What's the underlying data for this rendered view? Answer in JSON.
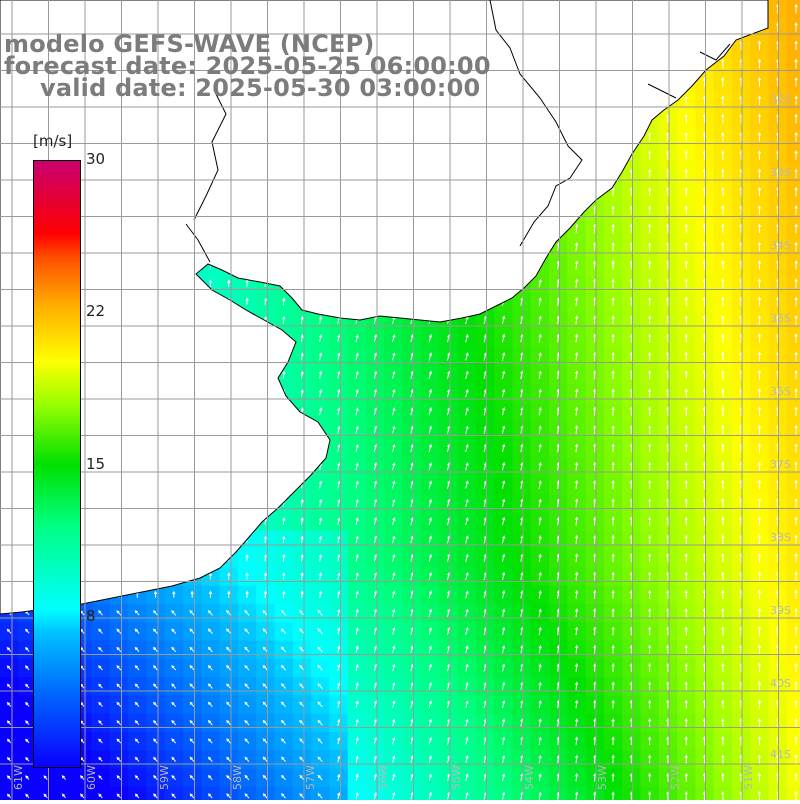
{
  "title": {
    "line1": "modelo GEFS-WAVE (NCEP)",
    "line2": "forecast date: 2025-05-25 06:00:00",
    "line3": "valid date: 2025-05-30 03:00:00"
  },
  "colorbar": {
    "unit": "[m/s]",
    "ticks": [
      "30",
      "22",
      "15",
      "8"
    ],
    "min": 0,
    "max": 30,
    "colors": [
      "#0a00ff",
      "#0066ff",
      "#00ffff",
      "#00e000",
      "#ffff00",
      "#ff5000",
      "#ff0000",
      "#c8006e"
    ]
  },
  "map": {
    "lat_labels": [
      "32S",
      "33S",
      "34S",
      "35S",
      "36S",
      "37S",
      "38S",
      "39S",
      "40S",
      "41S"
    ],
    "lon_labels": [
      "61W",
      "60W",
      "59W",
      "58W",
      "57W",
      "56W",
      "55W",
      "54W",
      "53W",
      "52W",
      "51W"
    ],
    "lat_range": [
      -41.5,
      -30.5
    ],
    "lon_range": [
      -61.5,
      -50.5
    ],
    "variable": "wind speed",
    "land_color": "#ffffff",
    "grid_color": "#9a9a9a",
    "coast_color": "#000000",
    "arrow_color": "#ffffff"
  }
}
